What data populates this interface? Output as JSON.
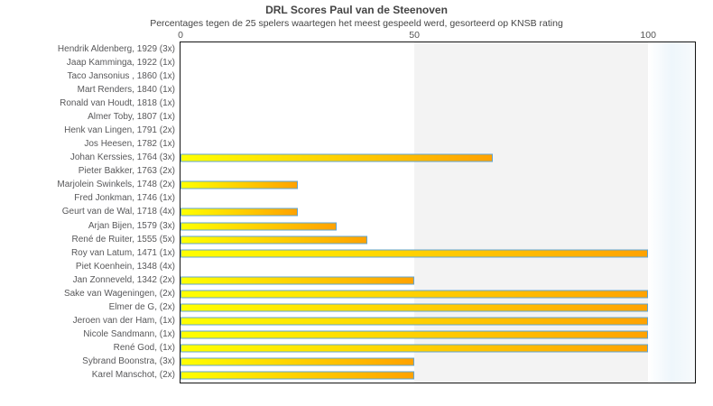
{
  "header": {
    "title": "DRL Scores Paul van de Steenoven",
    "subtitle": "Percentages tegen de 25 spelers waartegen het meest gespeeld werd, gesorteerd op KNSB rating"
  },
  "chart_data": {
    "type": "bar",
    "orientation": "horizontal",
    "title": "DRL Scores Paul van de Steenoven",
    "subtitle": "Percentages tegen de 25 spelers waartegen het meest gespeeld werd, gesorteerd op KNSB rating",
    "xlabel": "",
    "ylabel": "",
    "xlim": [
      0,
      110
    ],
    "xticks": [
      0,
      50,
      100
    ],
    "grid": false,
    "legend": "none",
    "categories": [
      "Hendrik Aldenberg, 1929 (3x)",
      "Jaap Kamminga, 1922 (1x)",
      "Taco Jansonius , 1860 (1x)",
      "Mart Renders, 1840 (1x)",
      "Ronald van Houdt, 1818 (1x)",
      "Almer Toby, 1807 (1x)",
      "Henk van Lingen, 1791 (2x)",
      "Jos Heesen, 1782 (1x)",
      "Johan Kerssies, 1764 (3x)",
      "Pieter Bakker, 1763 (2x)",
      "Marjolein Swinkels, 1748 (2x)",
      "Fred Jonkman, 1746 (1x)",
      "Geurt van de Wal, 1718 (4x)",
      "Arjan Bijen, 1579 (3x)",
      "René de Ruiter, 1555 (5x)",
      "Roy van Latum, 1471 (1x)",
      "Piet Koenhein, 1348 (4x)",
      "Jan Zonneveld, 1342 (2x)",
      "Sake van Wageningen,  (2x)",
      "Elmer de G,  (2x)",
      "Jeroen van der Ham,  (1x)",
      "Nicole Sandmann,  (1x)",
      "René God,  (1x)",
      "Sybrand Boonstra,  (3x)",
      "Karel Manschot,  (2x)"
    ],
    "values": [
      0,
      0,
      0,
      0,
      0,
      0,
      0,
      0,
      66.7,
      0,
      25,
      0,
      25,
      33.3,
      40,
      100,
      0,
      50,
      100,
      100,
      100,
      100,
      100,
      50,
      50
    ],
    "bands": [
      {
        "name": "band-50-100",
        "from": 50,
        "to": 100,
        "color": "#f3f3f3"
      },
      {
        "name": "band-over-100",
        "from": 100,
        "to": 110,
        "gradient": [
          "#ffffff",
          "#eef6fb",
          "#f7fafc"
        ]
      }
    ],
    "bar_style": {
      "fill_gradient_start": "#ffff00",
      "fill_gradient_end": "#ffa200",
      "border_color": "#62a5d2"
    }
  }
}
